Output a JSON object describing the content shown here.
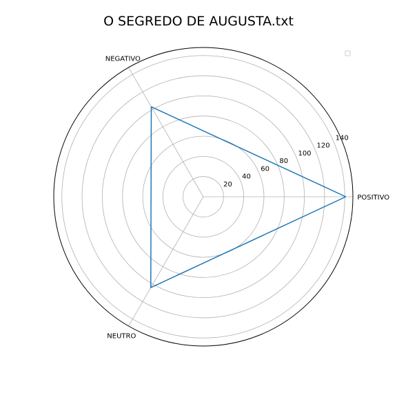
{
  "chart_data": {
    "type": "radar",
    "title": "O SEGREDO DE AUGUSTA.txt",
    "categories": [
      "POSITIVO",
      "NEGATIVO",
      "NEUTRO"
    ],
    "series": [
      {
        "values": [
          141,
          103,
          104
        ],
        "color": "#1f77b4"
      }
    ],
    "rlim": [
      0,
      148
    ],
    "rticks": [
      20,
      40,
      60,
      80,
      100,
      120,
      140
    ],
    "grid": true,
    "legend": {
      "placement": "top-right",
      "entries": []
    },
    "colors": {
      "grid": "#b0b0b0",
      "frame": "#000000",
      "series": "#1f77b4"
    }
  }
}
